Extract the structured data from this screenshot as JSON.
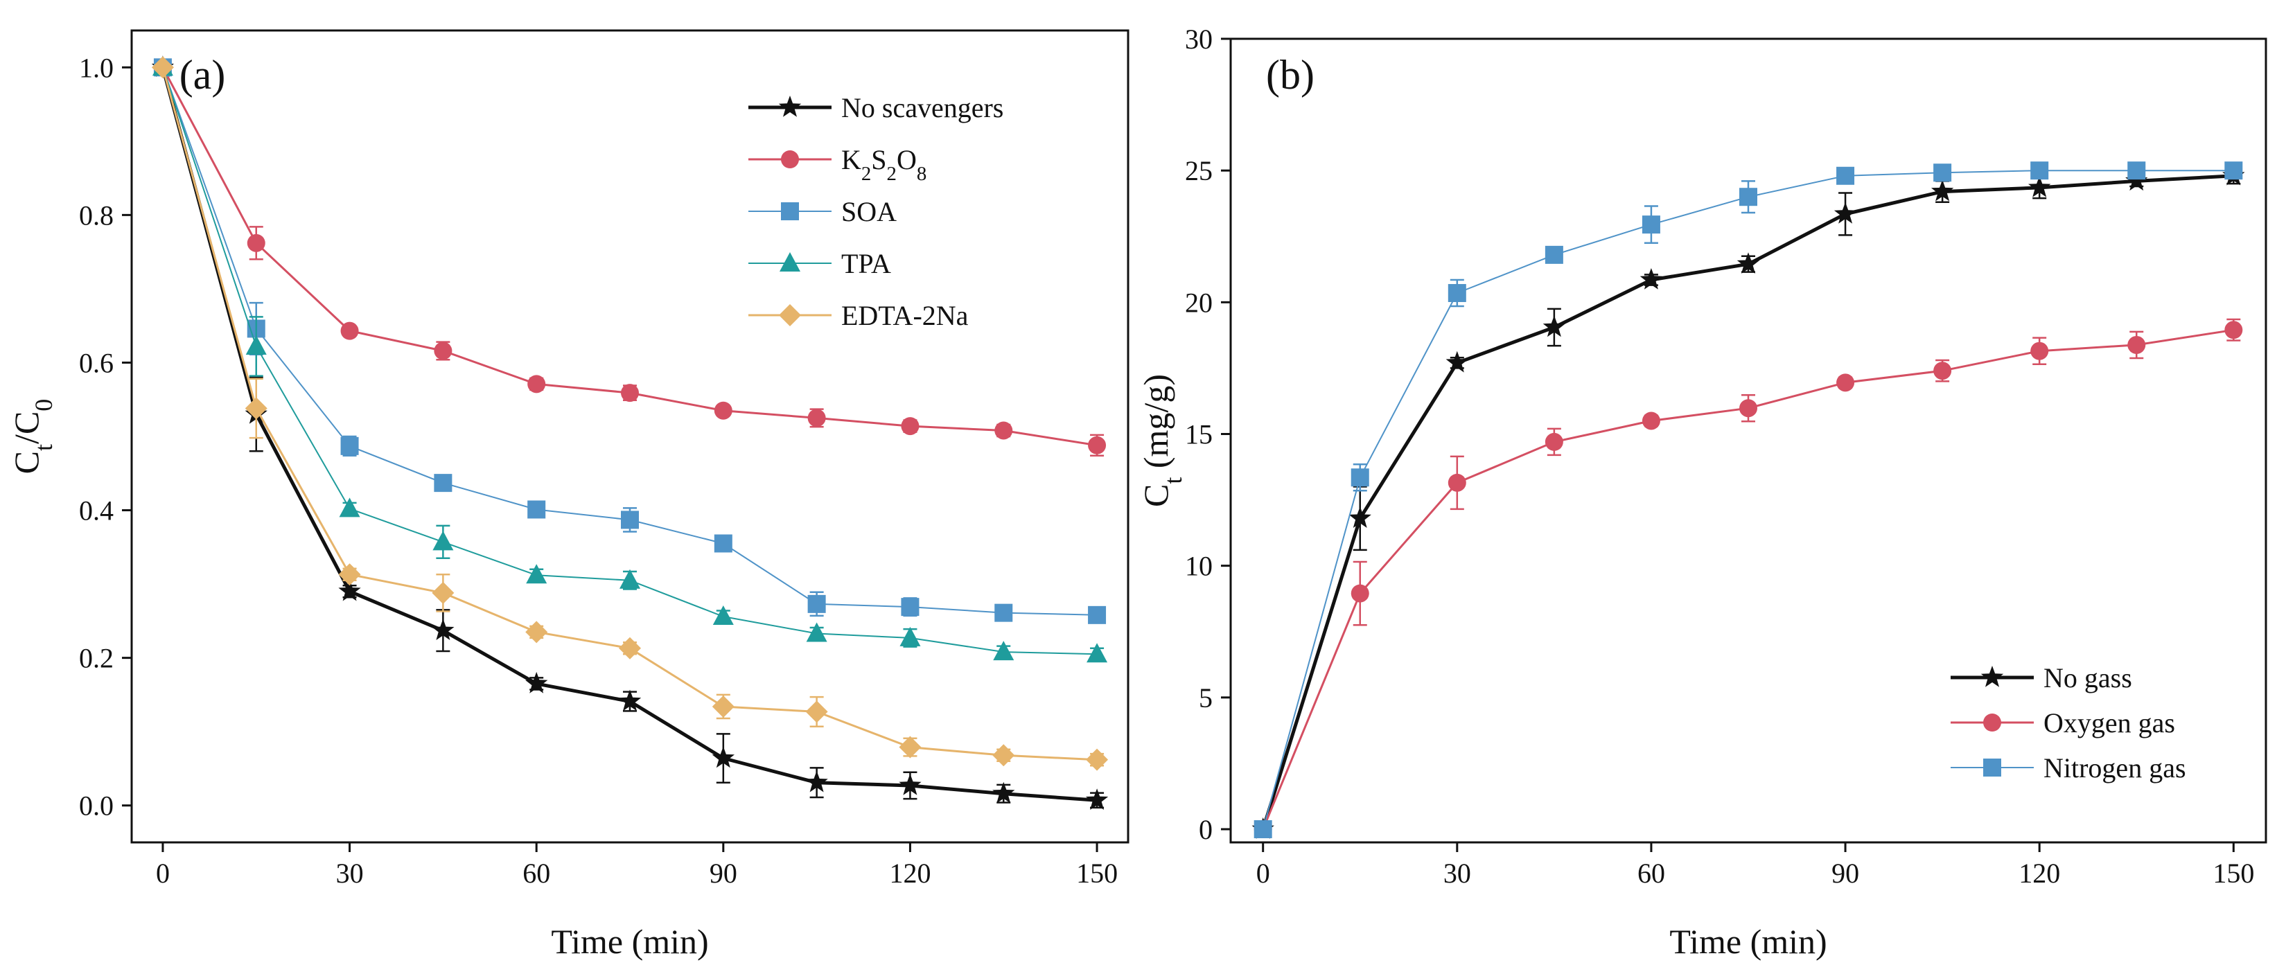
{
  "chart_data": [
    {
      "type": "line",
      "panel_label": "(a)",
      "xlabel": "Time (min)",
      "ylabel": {
        "main": "C",
        "sub": "t",
        "sep": "/",
        "main2": "C",
        "sub2": "0"
      },
      "xlim": [
        -5,
        155
      ],
      "ylim": [
        -0.05,
        1.05
      ],
      "xticks": [
        0,
        30,
        60,
        90,
        120,
        150
      ],
      "yticks": [
        0.0,
        0.2,
        0.4,
        0.6,
        0.8,
        1.0
      ],
      "ytick_labels": [
        "0.0",
        "0.2",
        "0.4",
        "0.6",
        "0.8",
        "1.0"
      ],
      "legend_position": "top-right",
      "x": [
        0,
        15,
        30,
        45,
        60,
        75,
        90,
        105,
        120,
        135,
        150
      ],
      "series": [
        {
          "name": "No  scavengers",
          "color": "#111111",
          "marker": "star",
          "line_width": 5,
          "values": [
            1.0,
            0.53,
            0.29,
            0.237,
            0.165,
            0.141,
            0.064,
            0.031,
            0.027,
            0.016,
            0.007
          ],
          "errors": [
            0,
            0.05,
            0.008,
            0.028,
            0.008,
            0.013,
            0.033,
            0.02,
            0.018,
            0.012,
            0.01
          ]
        },
        {
          "name": "K2S2O8",
          "legend_parts": [
            [
              "K",
              ""
            ],
            [
              "2",
              "sub"
            ],
            [
              "S",
              ""
            ],
            [
              "2",
              "sub"
            ],
            [
              "O",
              ""
            ],
            [
              "8",
              "sub"
            ]
          ],
          "color": "#d44f62",
          "marker": "circle",
          "line_width": 3,
          "values": [
            1.0,
            0.762,
            0.643,
            0.616,
            0.571,
            0.559,
            0.535,
            0.525,
            0.514,
            0.508,
            0.488
          ],
          "errors": [
            0,
            0.022,
            0.006,
            0.012,
            0.008,
            0.01,
            0.006,
            0.012,
            0.008,
            0.008,
            0.014
          ]
        },
        {
          "name": "SOA",
          "color": "#4f93c8",
          "marker": "square",
          "line_width": 2,
          "values": [
            1.0,
            0.646,
            0.487,
            0.437,
            0.401,
            0.387,
            0.355,
            0.273,
            0.269,
            0.261,
            0.258
          ],
          "errors": [
            0,
            0.035,
            0.013,
            0.008,
            0.008,
            0.016,
            0.008,
            0.016,
            0.012,
            0.008,
            0.008
          ]
        },
        {
          "name": "TPA",
          "color": "#1f9c9c",
          "marker": "triangle",
          "line_width": 2,
          "values": [
            1.0,
            0.622,
            0.402,
            0.357,
            0.312,
            0.305,
            0.256,
            0.233,
            0.227,
            0.208,
            0.205
          ],
          "errors": [
            0,
            0.04,
            0.008,
            0.022,
            0.008,
            0.012,
            0.008,
            0.008,
            0.012,
            0.008,
            0.008
          ]
        },
        {
          "name": "EDTA-2Na",
          "color": "#e6b46b",
          "marker": "diamond",
          "line_width": 3,
          "values": [
            1.0,
            0.538,
            0.313,
            0.288,
            0.235,
            0.213,
            0.134,
            0.127,
            0.079,
            0.068,
            0.062
          ],
          "errors": [
            0,
            0.04,
            0.008,
            0.025,
            0.008,
            0.008,
            0.016,
            0.02,
            0.012,
            0.008,
            0.008
          ]
        }
      ]
    },
    {
      "type": "line",
      "panel_label": "(b)",
      "xlabel": "Time (min)",
      "ylabel": {
        "main": "C",
        "sub": "t",
        "rest": " (mg/g)"
      },
      "xlim": [
        -5,
        155
      ],
      "ylim": [
        -0.5,
        30
      ],
      "xticks": [
        0,
        30,
        60,
        90,
        120,
        150
      ],
      "yticks": [
        0,
        5,
        10,
        15,
        20,
        25,
        30
      ],
      "ytick_labels": [
        "0",
        "5",
        "10",
        "15",
        "20",
        "25",
        "30"
      ],
      "legend_position": "bottom-right",
      "x": [
        0,
        15,
        30,
        45,
        60,
        75,
        90,
        105,
        120,
        135,
        150
      ],
      "series": [
        {
          "name": "No  gass",
          "color": "#111111",
          "marker": "star",
          "line_width": 5,
          "values": [
            0,
            11.8,
            17.7,
            19.05,
            20.85,
            21.45,
            23.35,
            24.2,
            24.35,
            24.6,
            24.8
          ],
          "errors": [
            0,
            1.2,
            0.2,
            0.7,
            0.2,
            0.3,
            0.8,
            0.4,
            0.4,
            0.2,
            0.3
          ]
        },
        {
          "name": "Oxygen gas",
          "color": "#d44f62",
          "marker": "circle",
          "line_width": 3,
          "values": [
            0,
            8.95,
            13.15,
            14.7,
            15.5,
            15.98,
            16.95,
            17.4,
            18.15,
            18.38,
            18.95
          ],
          "errors": [
            0,
            1.2,
            1.0,
            0.5,
            0.2,
            0.5,
            0.2,
            0.4,
            0.5,
            0.5,
            0.4
          ]
        },
        {
          "name": "Nitrogen gas",
          "color": "#4f93c8",
          "marker": "square",
          "line_width": 2,
          "values": [
            0,
            13.35,
            20.35,
            21.8,
            22.95,
            24.0,
            24.8,
            24.92,
            25.0,
            25.0,
            25.0
          ],
          "errors": [
            0,
            0.5,
            0.5,
            0.2,
            0.7,
            0.6,
            0.2,
            0.2,
            0.2,
            0.2,
            0.2
          ]
        }
      ]
    }
  ]
}
